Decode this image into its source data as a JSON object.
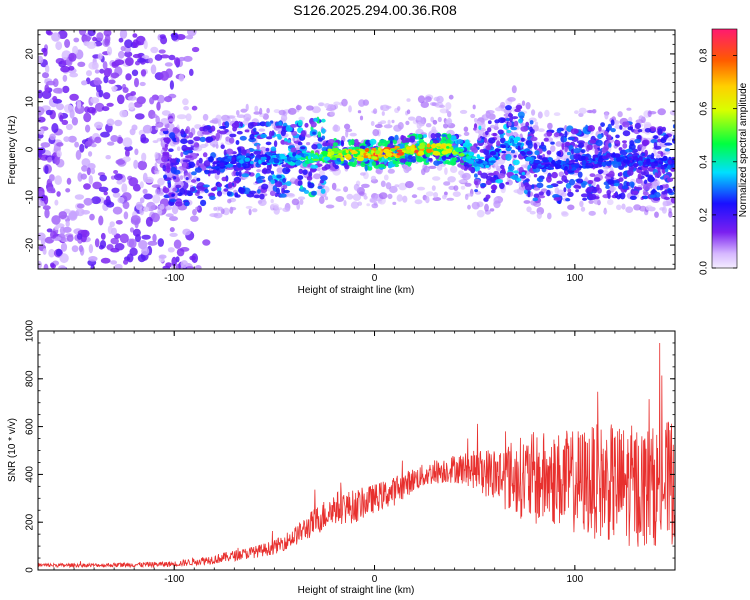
{
  "title": "S126.2025.294.00.36.R08",
  "chart_data": [
    {
      "type": "heatmap",
      "title": "S126.2025.294.00.36.R08",
      "xlabel": "Height of straight line (km)",
      "ylabel": "Frequency (Hz)",
      "xlim": [
        -168,
        150
      ],
      "ylim": [
        -25,
        25
      ],
      "xticks": [
        -100,
        0,
        100
      ],
      "yticks": [
        -20,
        -10,
        0,
        10,
        20
      ],
      "colorbar": {
        "label": "Normalized spectral amplitude",
        "range": [
          0.0,
          0.9
        ],
        "ticks": [
          "0.0",
          "0.2",
          "0.4",
          "0.6",
          "0.8"
        ]
      },
      "ridge_profile": {
        "x": [
          -168,
          -100,
          -80,
          -60,
          -40,
          -20,
          0,
          20,
          40,
          55,
          70,
          80,
          100,
          120,
          150
        ],
        "center_hz": [
          0,
          -4,
          -3,
          -2,
          -2,
          -1,
          -1,
          0,
          0,
          -3,
          2,
          -3,
          -3,
          -2,
          -3
        ],
        "peak_amplitude": [
          0.15,
          0.25,
          0.3,
          0.35,
          0.4,
          0.65,
          0.85,
          0.85,
          0.6,
          0.35,
          0.4,
          0.3,
          0.3,
          0.3,
          0.3
        ]
      }
    },
    {
      "type": "line",
      "title": "",
      "xlabel": "Height of straight line (km)",
      "ylabel": "SNR (10 * v/v)",
      "xlim": [
        -168,
        150
      ],
      "ylim": [
        0,
        1000
      ],
      "xticks": [
        -100,
        0,
        100
      ],
      "yticks": [
        0,
        200,
        400,
        600,
        800,
        1000
      ],
      "color": "#e8302e",
      "series": [
        {
          "name": "SNR",
          "x": [
            -168,
            -140,
            -120,
            -100,
            -80,
            -60,
            -50,
            -40,
            -30,
            -20,
            -10,
            0,
            10,
            20,
            30,
            40,
            50,
            60,
            70,
            80,
            90,
            100,
            110,
            120,
            130,
            140,
            150
          ],
          "mean": [
            20,
            20,
            22,
            25,
            45,
            75,
            95,
            140,
            200,
            260,
            265,
            300,
            330,
            380,
            410,
            425,
            420,
            400,
            390,
            380,
            380,
            370,
            370,
            360,
            350,
            350,
            370
          ],
          "spread": [
            8,
            8,
            10,
            12,
            20,
            25,
            30,
            40,
            60,
            70,
            70,
            60,
            60,
            50,
            50,
            60,
            80,
            120,
            160,
            200,
            200,
            220,
            240,
            250,
            260,
            250,
            270
          ]
        }
      ]
    }
  ]
}
